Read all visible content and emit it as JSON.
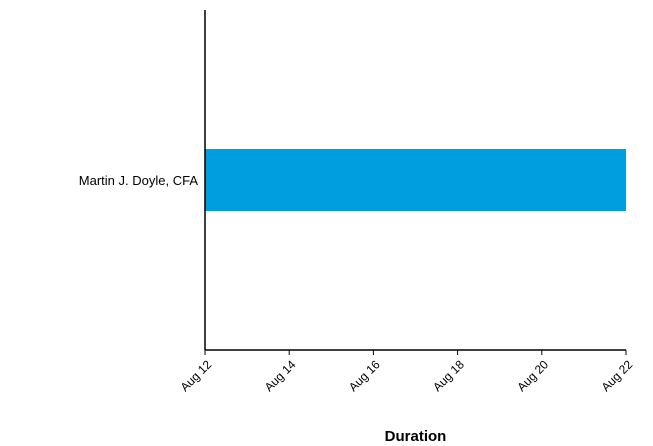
{
  "chart_data": {
    "type": "bar",
    "orientation": "horizontal",
    "categories": [
      "Martin J. Doyle, CFA"
    ],
    "bars": [
      {
        "category": "Martin J. Doyle, CFA",
        "start": "Aug 12",
        "end": "Aug 22"
      }
    ],
    "xlabel": "Duration",
    "ylabel": "",
    "x_ticks": [
      "Aug 12",
      "Aug 14",
      "Aug 16",
      "Aug 18",
      "Aug 20",
      "Aug 22"
    ],
    "xlim": [
      "Aug 12",
      "Aug 22"
    ],
    "grid": false,
    "legend": "none",
    "bar_color": "#009edf",
    "axis_color": "#000000"
  }
}
